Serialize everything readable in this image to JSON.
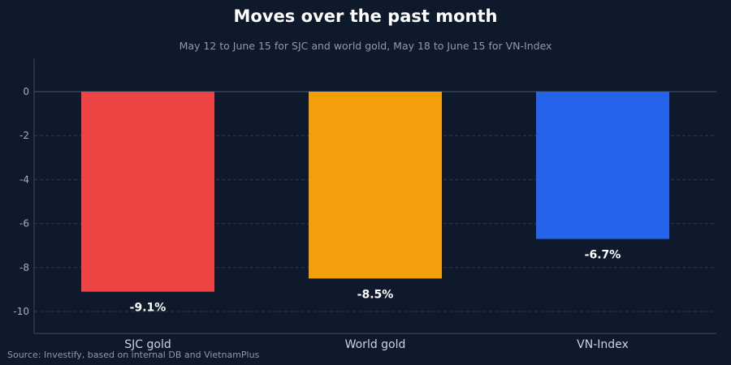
{
  "chart_data": {
    "type": "bar",
    "title": "Moves over the past month",
    "subtitle": "May 12 to June 15 for SJC and world gold, May 18 to June 15 for VN-Index",
    "categories": [
      "SJC gold",
      "World gold",
      "VN-Index"
    ],
    "values": [
      -9.1,
      -8.5,
      -6.7
    ],
    "data_labels": [
      "-9.1%",
      "-8.5%",
      "-6.7%"
    ],
    "colors": [
      "#ef4444",
      "#f59e0b",
      "#2563eb"
    ],
    "xlabel": "",
    "ylabel": "",
    "ylim": [
      -11,
      1.5
    ],
    "yticks": [
      0,
      -2,
      -4,
      -6,
      -8,
      -10
    ],
    "ytick_labels": [
      "0",
      "-2",
      "-4",
      "-6",
      "-8",
      "-10"
    ],
    "grid": true,
    "legend": "none"
  },
  "source": "Source: Investify, based on internal DB and VietnamPlus"
}
